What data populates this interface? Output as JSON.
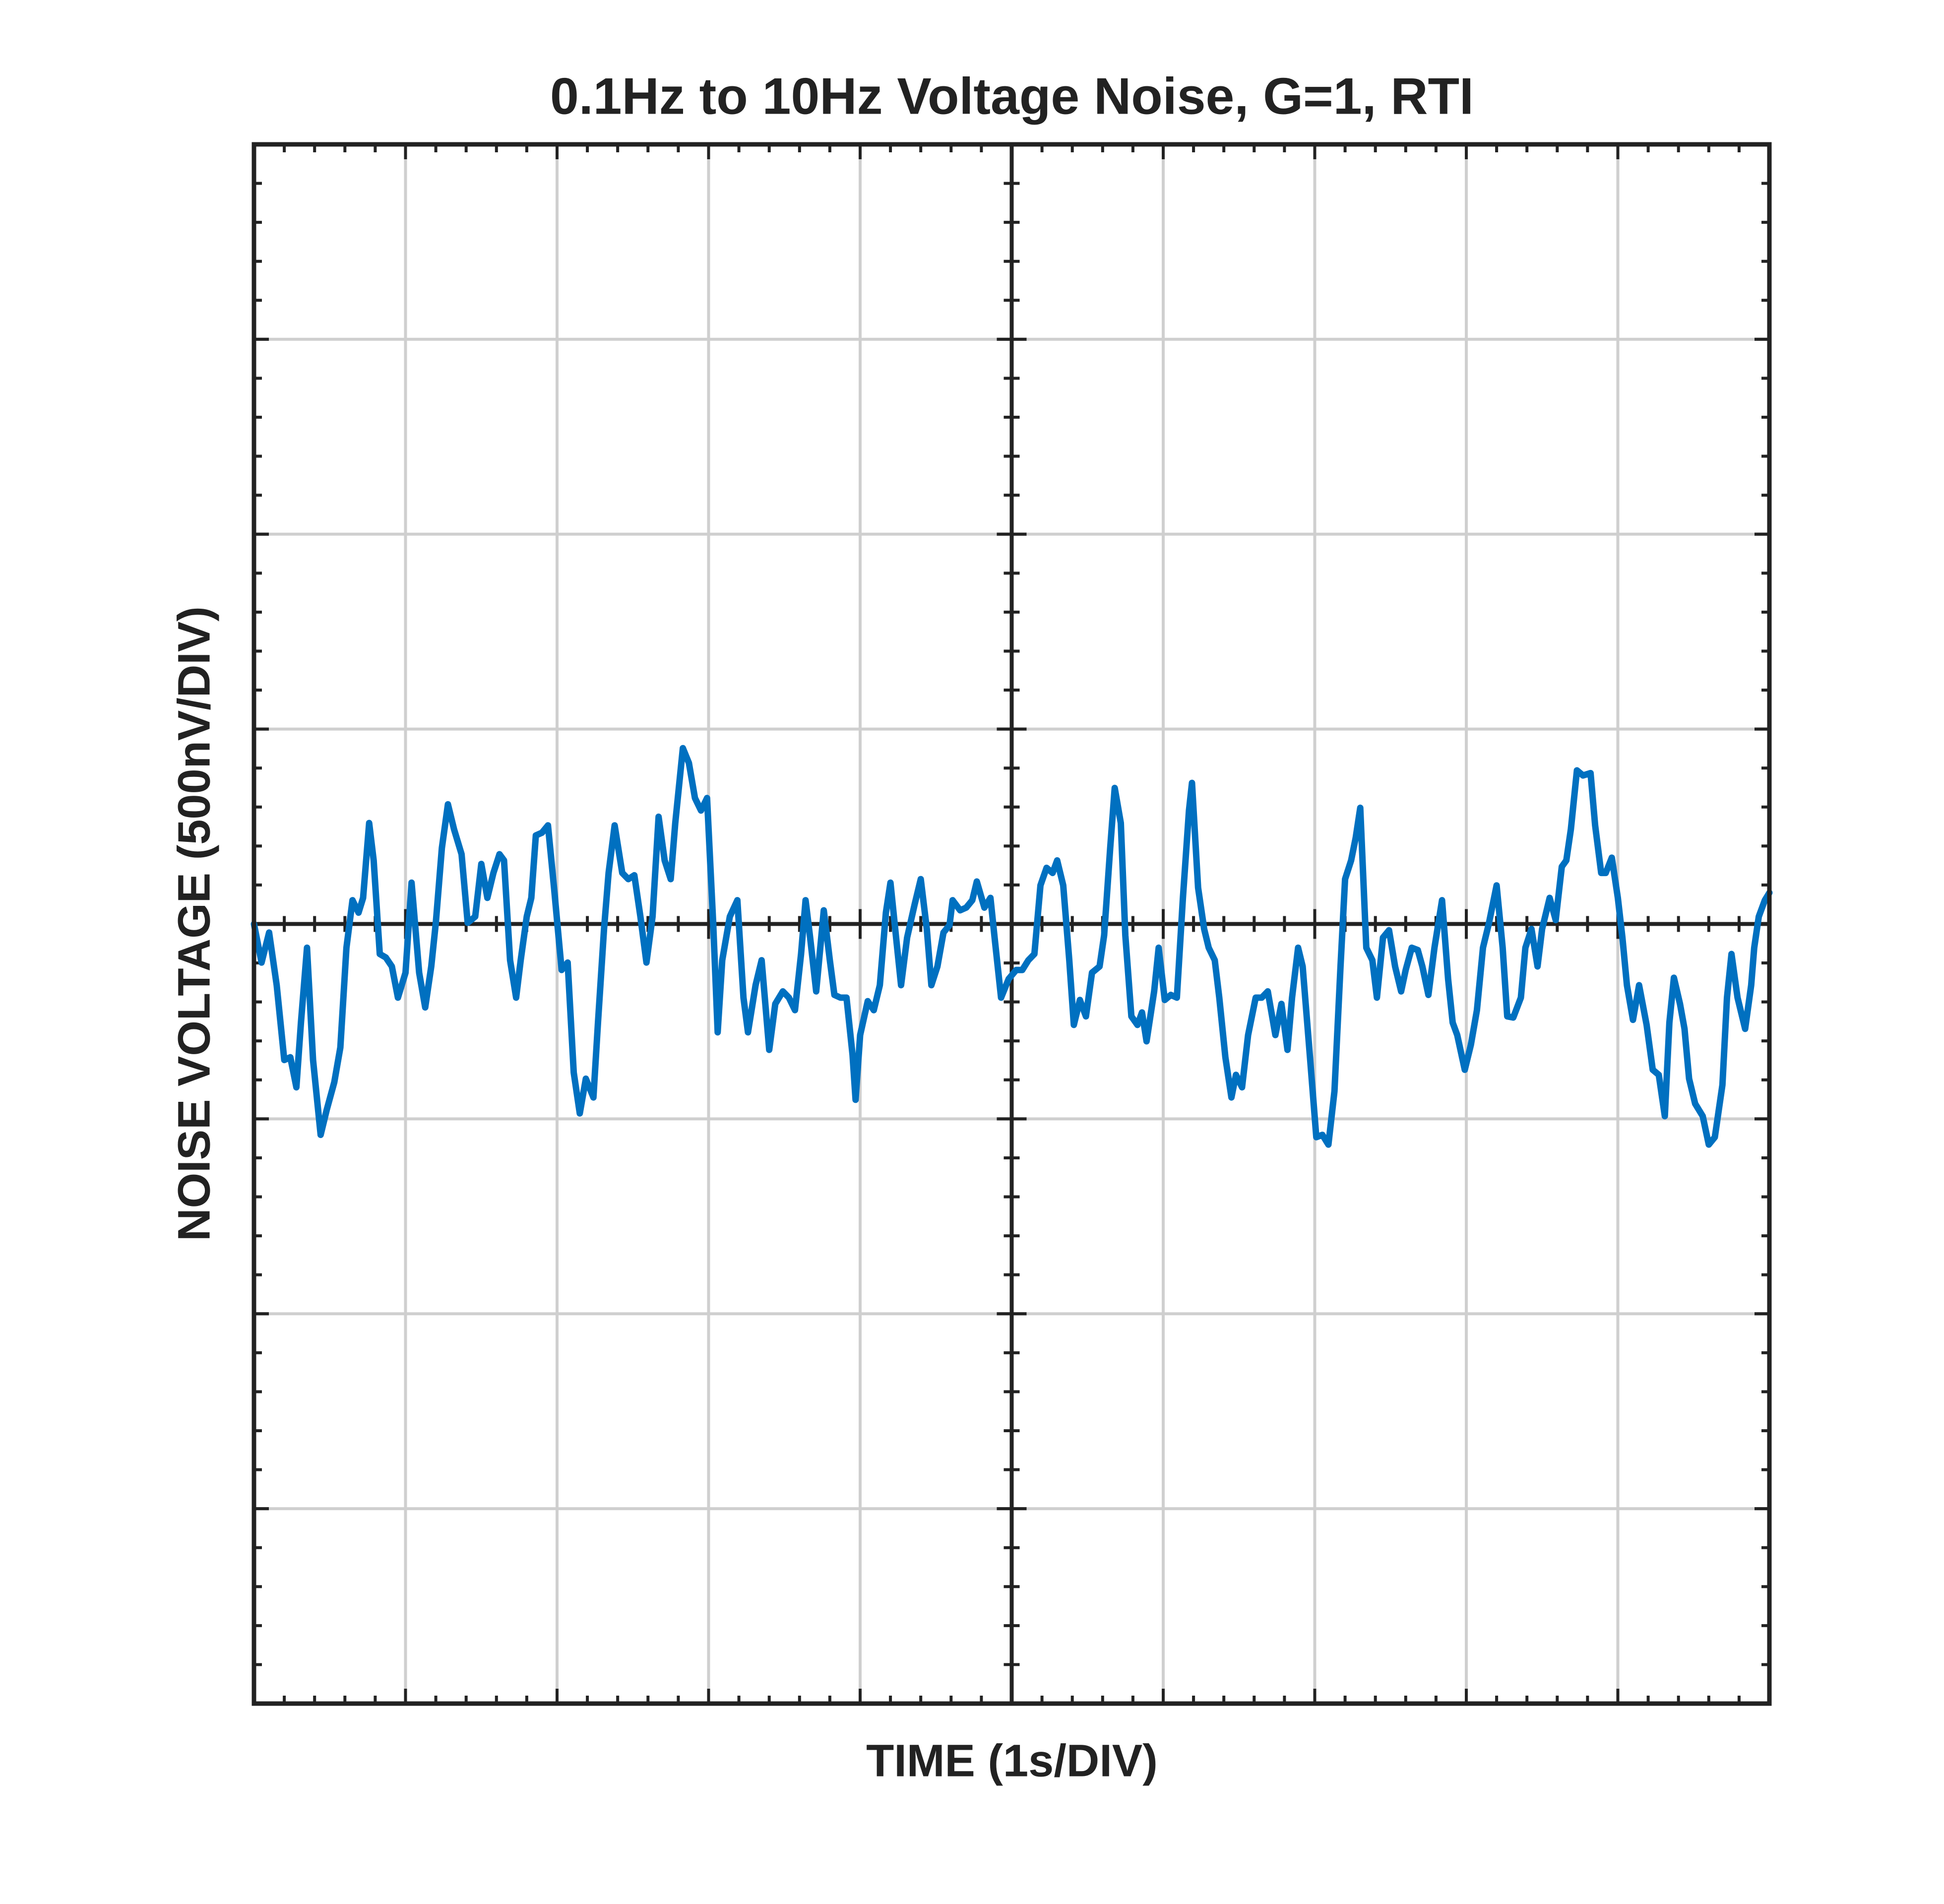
{
  "chart_data": {
    "type": "line",
    "title": "0.1Hz to 10Hz Voltage Noise, G=1, RTI",
    "x_label": "TIME (1s/DIV)",
    "y_label": "NOISE VOLTAGE (500nV/DIV)",
    "xlim": [
      0,
      10
    ],
    "xticks": [
      0,
      1,
      2,
      3,
      4,
      5,
      6,
      7,
      8,
      9,
      10
    ],
    "ylim": [
      -2000,
      2000
    ],
    "yticks": [
      -2000,
      -1500,
      -1000,
      -500,
      0,
      500,
      1000,
      1500,
      2000
    ],
    "grid": true,
    "center_axes": true,
    "series": [
      {
        "color": "#0070c0",
        "x": [
          0,
          0.05,
          0.1,
          0.15,
          0.2,
          0.24,
          0.28,
          0.31,
          0.35,
          0.39,
          0.44,
          0.48,
          0.53,
          0.57,
          0.61,
          0.65,
          0.69,
          0.72,
          0.76,
          0.79,
          0.83,
          0.87,
          0.91,
          0.95,
          1.0,
          1.04,
          1.09,
          1.13,
          1.17,
          1.2,
          1.24,
          1.28,
          1.32,
          1.37,
          1.41,
          1.46,
          1.5,
          1.54,
          1.58,
          1.62,
          1.65,
          1.69,
          1.73,
          1.76,
          1.8,
          1.83,
          1.86,
          1.9,
          1.94,
          1.98,
          2.03,
          2.07,
          2.11,
          2.15,
          2.19,
          2.24,
          2.27,
          2.31,
          2.34,
          2.38,
          2.43,
          2.47,
          2.51,
          2.55,
          2.59,
          2.63,
          2.67,
          2.71,
          2.75,
          2.78,
          2.83,
          2.87,
          2.91,
          2.95,
          2.99,
          3.03,
          3.06,
          3.09,
          3.14,
          3.19,
          3.23,
          3.26,
          3.31,
          3.35,
          3.4,
          3.44,
          3.49,
          3.53,
          3.57,
          3.61,
          3.64,
          3.67,
          3.71,
          3.76,
          3.8,
          3.83,
          3.87,
          3.91,
          3.95,
          3.97,
          4.0,
          4.05,
          4.09,
          4.13,
          4.17,
          4.2,
          4.24,
          4.27,
          4.31,
          4.36,
          4.4,
          4.44,
          4.47,
          4.51,
          4.55,
          4.59,
          4.61,
          4.66,
          4.7,
          4.74,
          4.77,
          4.82,
          4.86,
          4.89,
          4.93,
          4.98,
          5.03,
          5.07,
          5.11,
          5.15,
          5.19,
          5.23,
          5.27,
          5.3,
          5.34,
          5.38,
          5.41,
          5.45,
          5.49,
          5.53,
          5.58,
          5.61,
          5.65,
          5.68,
          5.72,
          5.75,
          5.79,
          5.83,
          5.86,
          5.89,
          5.94,
          5.97,
          6.01,
          6.05,
          6.09,
          6.13,
          6.17,
          6.19,
          6.23,
          6.27,
          6.3,
          6.34,
          6.37,
          6.41,
          6.45,
          6.48,
          6.52,
          6.56,
          6.61,
          6.65,
          6.69,
          6.74,
          6.78,
          6.82,
          6.85,
          6.89,
          6.92,
          6.97,
          7.01,
          7.05,
          7.09,
          7.13,
          7.17,
          7.2,
          7.24,
          7.27,
          7.3,
          7.34,
          7.38,
          7.41,
          7.45,
          7.49,
          7.53,
          7.57,
          7.6,
          7.64,
          7.68,
          7.71,
          7.75,
          7.79,
          7.84,
          7.88,
          7.91,
          7.94,
          7.99,
          8.03,
          8.07,
          8.11,
          8.15,
          8.2,
          8.24,
          8.27,
          8.31,
          8.36,
          8.39,
          8.43,
          8.47,
          8.5,
          8.55,
          8.59,
          8.63,
          8.66,
          8.69,
          8.73,
          8.77,
          8.82,
          8.85,
          8.89,
          8.92,
          8.96,
          9.0,
          9.03,
          9.06,
          9.1,
          9.14,
          9.19,
          9.23,
          9.27,
          9.31,
          9.34,
          9.37,
          9.41,
          9.44,
          9.47,
          9.51,
          9.56,
          9.6,
          9.64,
          9.69,
          9.72,
          9.75,
          9.79,
          9.84,
          9.88,
          9.9,
          9.93,
          9.97,
          10.0
        ],
        "values": [
          0,
          -99,
          -22,
          -157,
          -349,
          -342,
          -419,
          -253,
          -61,
          -349,
          -541,
          -477,
          -406,
          -317,
          -61,
          61,
          29,
          67,
          259,
          163,
          -77,
          -86,
          -109,
          -189,
          -125,
          106,
          -125,
          -214,
          -109,
          3,
          195,
          307,
          243,
          179,
          3,
          19,
          154,
          67,
          131,
          179,
          163,
          -93,
          -189,
          -93,
          19,
          67,
          227,
          234,
          253,
          93,
          -118,
          -99,
          -381,
          -486,
          -397,
          -445,
          -253,
          -13,
          131,
          253,
          131,
          115,
          125,
          19,
          -99,
          19,
          275,
          163,
          115,
          259,
          451,
          413,
          323,
          291,
          323,
          3,
          -278,
          -93,
          19,
          61,
          -189,
          -278,
          -157,
          -93,
          -323,
          -205,
          -173,
          -189,
          -221,
          -77,
          61,
          -35,
          -173,
          35,
          -93,
          -182,
          -189,
          -189,
          -336,
          -451,
          -285,
          -198,
          -221,
          -157,
          29,
          106,
          -45,
          -157,
          -35,
          51,
          115,
          -13,
          -157,
          -109,
          -22,
          -3,
          61,
          35,
          42,
          61,
          109,
          42,
          67,
          -45,
          -189,
          -141,
          -118,
          -118,
          -93,
          -77,
          99,
          144,
          131,
          163,
          99,
          -93,
          -259,
          -195,
          -237,
          -125,
          -109,
          -29,
          195,
          349,
          259,
          -29,
          -237,
          -259,
          -227,
          -301,
          -173,
          -61,
          -195,
          -182,
          -189,
          67,
          291,
          362,
          93,
          -13,
          -61,
          -93,
          -189,
          -342,
          -445,
          -387,
          -419,
          -285,
          -189,
          -189,
          -173,
          -285,
          -205,
          -323,
          -189,
          -61,
          -109,
          -349,
          -547,
          -541,
          -566,
          -429,
          -109,
          115,
          163,
          221,
          298,
          -61,
          -93,
          -189,
          -35,
          -16,
          -109,
          -173,
          -118,
          -61,
          -67,
          -109,
          -182,
          -61,
          61,
          -141,
          -253,
          -285,
          -374,
          -310,
          -221,
          -61,
          3,
          99,
          -61,
          -237,
          -240,
          -189,
          -61,
          -13,
          -109,
          -13,
          67,
          10,
          147,
          163,
          243,
          394,
          381,
          387,
          253,
          131,
          131,
          170,
          67,
          -35,
          -157,
          -246,
          -157,
          -259,
          -374,
          -387,
          -493,
          -253,
          -138,
          -205,
          -269,
          -397,
          -461,
          -493,
          -566,
          -547,
          -413,
          -189,
          -77,
          -189,
          -269,
          -157,
          -61,
          19,
          61,
          80
        ]
      }
    ]
  }
}
